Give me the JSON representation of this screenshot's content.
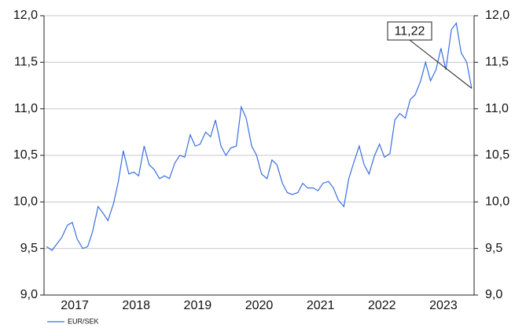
{
  "chart_data": {
    "type": "line",
    "annotation": "11,22",
    "x": [
      2017.04,
      2017.13,
      2017.21,
      2017.29,
      2017.38,
      2017.46,
      2017.54,
      2017.63,
      2017.71,
      2017.79,
      2017.88,
      2017.96,
      2018.04,
      2018.13,
      2018.21,
      2018.29,
      2018.38,
      2018.46,
      2018.54,
      2018.63,
      2018.71,
      2018.79,
      2018.88,
      2018.96,
      2019.04,
      2019.13,
      2019.21,
      2019.29,
      2019.38,
      2019.46,
      2019.54,
      2019.63,
      2019.71,
      2019.79,
      2019.88,
      2019.96,
      2020.04,
      2020.13,
      2020.21,
      2020.29,
      2020.38,
      2020.46,
      2020.54,
      2020.63,
      2020.71,
      2020.79,
      2020.88,
      2020.96,
      2021.04,
      2021.13,
      2021.21,
      2021.29,
      2021.38,
      2021.46,
      2021.54,
      2021.63,
      2021.71,
      2021.79,
      2021.88,
      2021.96,
      2022.04,
      2022.13,
      2022.21,
      2022.29,
      2022.38,
      2022.46,
      2022.54,
      2022.63,
      2022.71,
      2022.79,
      2022.88,
      2022.96,
      2023.04,
      2023.13,
      2023.21,
      2023.29,
      2023.38,
      2023.46,
      2023.54,
      2023.63,
      2023.71,
      2023.79,
      2023.88,
      2023.96
    ],
    "series": [
      {
        "name": "EUR/SEK",
        "color": "#3a6fe0",
        "values": [
          9.52,
          9.48,
          9.55,
          9.62,
          9.75,
          9.78,
          9.6,
          9.5,
          9.52,
          9.68,
          9.95,
          9.88,
          9.8,
          9.98,
          10.22,
          10.55,
          10.3,
          10.32,
          10.28,
          10.6,
          10.4,
          10.35,
          10.25,
          10.28,
          10.25,
          10.42,
          10.5,
          10.48,
          10.72,
          10.6,
          10.62,
          10.75,
          10.7,
          10.88,
          10.6,
          10.5,
          10.58,
          10.6,
          11.02,
          10.9,
          10.6,
          10.5,
          10.3,
          10.25,
          10.45,
          10.4,
          10.2,
          10.1,
          10.08,
          10.1,
          10.2,
          10.15,
          10.15,
          10.12,
          10.2,
          10.22,
          10.15,
          10.02,
          9.95,
          10.25,
          10.42,
          10.6,
          10.4,
          10.3,
          10.5,
          10.62,
          10.48,
          10.52,
          10.88,
          10.95,
          10.9,
          11.1,
          11.15,
          11.3,
          11.5,
          11.3,
          11.42,
          11.65,
          11.42,
          11.85,
          11.92,
          11.6,
          11.5,
          11.22
        ]
      }
    ],
    "xlim": [
      2017,
      2024
    ],
    "xticks": [
      {
        "value": 2017.5,
        "label": "2017"
      },
      {
        "value": 2018.5,
        "label": "2018"
      },
      {
        "value": 2019.5,
        "label": "2019"
      },
      {
        "value": 2020.5,
        "label": "2020"
      },
      {
        "value": 2021.5,
        "label": "2021"
      },
      {
        "value": 2022.5,
        "label": "2022"
      },
      {
        "value": 2023.5,
        "label": "2023"
      }
    ],
    "ylim": [
      9,
      12
    ],
    "yticks": [
      {
        "value": 9,
        "label": "9,0"
      },
      {
        "value": 9.5,
        "label": "9,5"
      },
      {
        "value": 10,
        "label": "10,0"
      },
      {
        "value": 10.5,
        "label": "10,5"
      },
      {
        "value": 11,
        "label": "11,0"
      },
      {
        "value": 11.5,
        "label": "11,5"
      },
      {
        "value": 12,
        "label": "12,0"
      }
    ],
    "y2lim": [
      9,
      12
    ],
    "y2ticks": [
      {
        "value": 9,
        "label": "9,0"
      },
      {
        "value": 9.5,
        "label": "9,5"
      },
      {
        "value": 10,
        "label": "10,0"
      },
      {
        "value": 10.5,
        "label": "10,5"
      },
      {
        "value": 11,
        "label": "11,0"
      },
      {
        "value": 11.5,
        "label": "11,5"
      },
      {
        "value": 12,
        "label": "12,0"
      }
    ],
    "grid": true
  }
}
